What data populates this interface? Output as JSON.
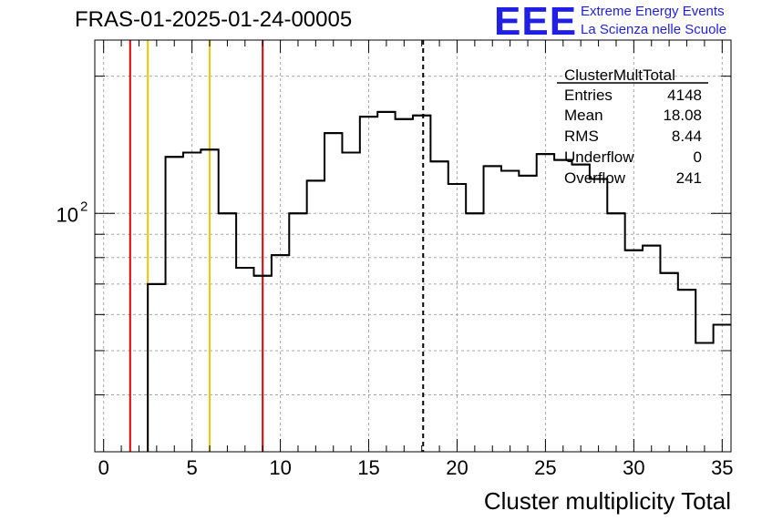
{
  "header": {
    "title": "FRAS-01-2025-01-24-00005",
    "logo": "EEE",
    "tagline_1": "Extreme Energy Events",
    "tagline_2": "La Scienza nelle Scuole"
  },
  "stats_box": {
    "name": "ClusterMultTotal",
    "rows": [
      {
        "label": "Entries",
        "value": "4148"
      },
      {
        "label": "Mean",
        "value": "18.08"
      },
      {
        "label": "RMS",
        "value": "8.44"
      },
      {
        "label": "Underflow",
        "value": "0"
      },
      {
        "label": "Overflow",
        "value": "241"
      }
    ]
  },
  "chart_data": {
    "type": "histogram",
    "title": "FRAS-01-2025-01-24-00005",
    "xlabel": "Cluster multiplicity Total",
    "ylabel": "",
    "xlim": [
      -0.5,
      35.5
    ],
    "ylim": [
      30,
      240
    ],
    "log_y": true,
    "grid": true,
    "bin_width": 1,
    "bin_edges_start": -0.5,
    "values": [
      0,
      0,
      0,
      70,
      133,
      136,
      138,
      100,
      76,
      73,
      81,
      100,
      118,
      150,
      136,
      163,
      167,
      161,
      164,
      130,
      116,
      100,
      127,
      124,
      121,
      135,
      131,
      128,
      119,
      100,
      83,
      85,
      74,
      68,
      52,
      57
    ],
    "xticks": [
      0,
      5,
      10,
      15,
      20,
      25,
      30,
      35
    ],
    "ytick_labels": [
      {
        "value": 100,
        "base": "10",
        "exp": "2"
      }
    ],
    "vertical_lines": [
      {
        "x": 1.5,
        "color": "#e00000",
        "style": "solid"
      },
      {
        "x": 2.5,
        "color": "#f5c400",
        "style": "solid"
      },
      {
        "x": 6,
        "color": "#f5c400",
        "style": "solid"
      },
      {
        "x": 9,
        "color": "#e00000",
        "style": "solid"
      },
      {
        "x": 18.08,
        "color": "#000000",
        "style": "dashed"
      }
    ],
    "colors": {
      "line": "#000000",
      "grid": "#a8a8a8"
    }
  }
}
